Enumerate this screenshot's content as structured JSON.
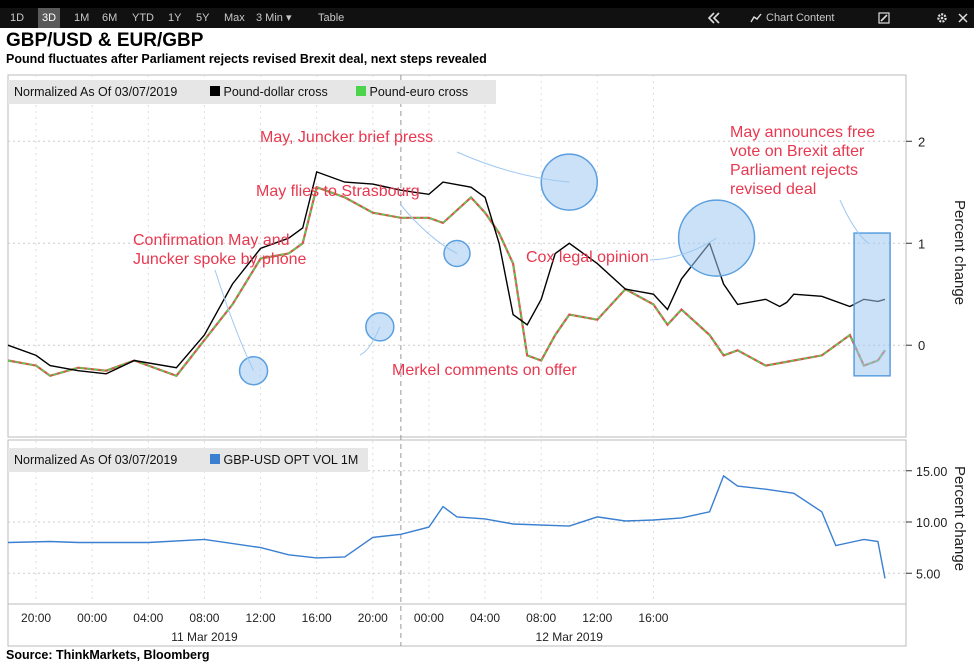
{
  "toolbar": {
    "items": [
      "1D",
      "3D",
      "1M",
      "6M",
      "YTD",
      "1Y",
      "5Y",
      "Max",
      "3 Min ▾",
      "Table"
    ],
    "active": "3D",
    "chart_content": "Chart Content",
    "collapse_icon": "double-chevron-left-icon",
    "chart_icon": "chart-icon",
    "edit_icon": "edit-icon",
    "settings_icon": "gear-icon"
  },
  "title": "GBP/USD & EUR/GBP",
  "subtitle": "Pound fluctuates after Parliament rejects revised Brexit deal, next steps revealed",
  "source": "Source: ThinkMarkets, Bloomberg",
  "colors": {
    "pound_dollar": "#000000",
    "pound_euro_up": "#4cd44c",
    "pound_euro_down": "#d9534f",
    "vol": "#3a7fd0",
    "annotation_text": "#e8384f",
    "highlight_fill": "#9fc8f0",
    "highlight_stroke": "#5a9fe0"
  },
  "chart_data": [
    {
      "type": "line",
      "panel": "top",
      "legend": {
        "prefix": "Normalized As Of 03/07/2019",
        "items": [
          "Pound-dollar cross",
          "Pound-euro cross"
        ]
      },
      "ylabel": "Percent change",
      "ylim": [
        -0.9,
        2.65
      ],
      "yticks": [
        "0",
        "1",
        "2"
      ],
      "x_tick_labels": [
        "20:00",
        "00:00",
        "04:00",
        "08:00",
        "12:00",
        "16:00",
        "20:00",
        "00:00",
        "04:00",
        "08:00",
        "12:00",
        "16:00"
      ],
      "x_date_labels": [
        "11 Mar 2019",
        "12 Mar 2019"
      ],
      "series": [
        {
          "name": "Pound-dollar cross",
          "x_hours": [
            0,
            2,
            3,
            5,
            7,
            9,
            12,
            14,
            16,
            18,
            20,
            21,
            22,
            24,
            26,
            28,
            29,
            30,
            31,
            33,
            34,
            35,
            36,
            37,
            38,
            39,
            40,
            42,
            44,
            46,
            47,
            48,
            50,
            51,
            52,
            54,
            55,
            55.5,
            56,
            58,
            60,
            61,
            62,
            62.5
          ],
          "values": [
            0.0,
            -0.1,
            -0.2,
            -0.25,
            -0.28,
            -0.15,
            -0.22,
            0.1,
            0.6,
            0.95,
            1.05,
            1.15,
            1.7,
            1.6,
            1.58,
            1.52,
            1.5,
            1.48,
            1.6,
            1.55,
            1.45,
            1.0,
            0.3,
            0.2,
            0.45,
            0.9,
            1.0,
            0.8,
            0.55,
            0.5,
            0.35,
            0.65,
            1.0,
            0.6,
            0.4,
            0.45,
            0.38,
            0.42,
            0.5,
            0.48,
            0.38,
            0.45,
            0.43,
            0.45
          ]
        },
        {
          "name": "Pound-euro cross",
          "x_hours": [
            0,
            2,
            3,
            5,
            7,
            9,
            12,
            14,
            16,
            18,
            20,
            21,
            22,
            24,
            26,
            28,
            30,
            31,
            33,
            34,
            35,
            36,
            37,
            38,
            39,
            40,
            42,
            44,
            46,
            47,
            48,
            50,
            51,
            52,
            54,
            56,
            58,
            60,
            61,
            62,
            62.5
          ],
          "values": [
            -0.15,
            -0.2,
            -0.3,
            -0.22,
            -0.25,
            -0.15,
            -0.3,
            0.05,
            0.4,
            0.85,
            0.9,
            1.0,
            1.55,
            1.45,
            1.3,
            1.25,
            1.25,
            1.2,
            1.45,
            1.3,
            1.1,
            0.8,
            -0.1,
            -0.15,
            0.1,
            0.3,
            0.25,
            0.55,
            0.4,
            0.2,
            0.35,
            0.1,
            -0.1,
            -0.05,
            -0.2,
            -0.15,
            -0.1,
            0.1,
            -0.2,
            -0.15,
            -0.05
          ]
        }
      ],
      "annotations": [
        "Confirmation May and\nJuncker spoke by phone",
        "May flies to Strasbourg",
        "May, Juncker brief press",
        "Merkel comments on offer",
        "Cox legal opinion",
        "May announces free\nvote on Brexit after\nParliament rejects\nrevised deal"
      ]
    },
    {
      "type": "line",
      "panel": "bottom",
      "legend": {
        "prefix": "Normalized As Of 03/07/2019",
        "items": [
          "GBP-USD OPT VOL 1M"
        ]
      },
      "ylabel": "Percent change",
      "ylim": [
        2.0,
        18.0
      ],
      "yticks": [
        "15.00",
        "10.00",
        "5.00"
      ],
      "series": [
        {
          "name": "GBP-USD OPT VOL 1M",
          "x_hours": [
            0,
            3,
            5,
            10,
            14,
            18,
            20,
            22,
            24,
            26,
            28,
            30,
            31,
            32,
            34,
            36,
            40,
            42,
            44,
            46,
            48,
            50,
            51,
            52,
            54,
            56,
            58,
            59,
            60,
            61,
            62,
            62.5
          ],
          "values": [
            8.0,
            8.1,
            8.0,
            8.0,
            8.3,
            7.5,
            6.8,
            6.5,
            6.6,
            8.5,
            8.8,
            9.5,
            11.5,
            10.5,
            10.3,
            9.8,
            9.6,
            10.5,
            10.1,
            10.2,
            10.4,
            11.0,
            14.5,
            13.5,
            13.2,
            12.8,
            11.0,
            7.7,
            8.0,
            8.3,
            8.1,
            4.5
          ]
        }
      ]
    }
  ]
}
